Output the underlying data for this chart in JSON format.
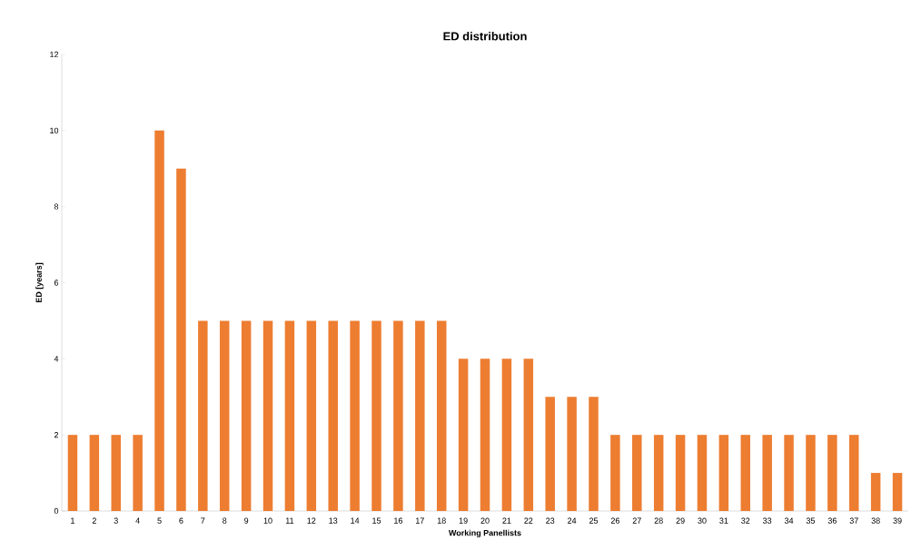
{
  "chart_data": {
    "type": "bar",
    "title": "ED distribution",
    "xlabel": "Working Panellists",
    "ylabel": "ED [years]",
    "categories": [
      "1",
      "2",
      "3",
      "4",
      "5",
      "6",
      "7",
      "8",
      "9",
      "10",
      "11",
      "12",
      "13",
      "14",
      "15",
      "16",
      "17",
      "18",
      "19",
      "20",
      "21",
      "22",
      "23",
      "24",
      "25",
      "26",
      "27",
      "28",
      "29",
      "30",
      "31",
      "32",
      "33",
      "34",
      "35",
      "36",
      "37",
      "38",
      "39"
    ],
    "values": [
      2,
      2,
      2,
      2,
      10,
      9,
      5,
      5,
      5,
      5,
      5,
      5,
      5,
      5,
      5,
      5,
      5,
      5,
      4,
      4,
      4,
      4,
      3,
      3,
      3,
      2,
      2,
      2,
      2,
      2,
      2,
      2,
      2,
      2,
      2,
      2,
      2,
      1,
      1
    ],
    "color": "#ed7d31",
    "ylim": [
      0,
      12
    ],
    "yticks": [
      0,
      2,
      4,
      6,
      8,
      10,
      12
    ],
    "grid": false
  }
}
